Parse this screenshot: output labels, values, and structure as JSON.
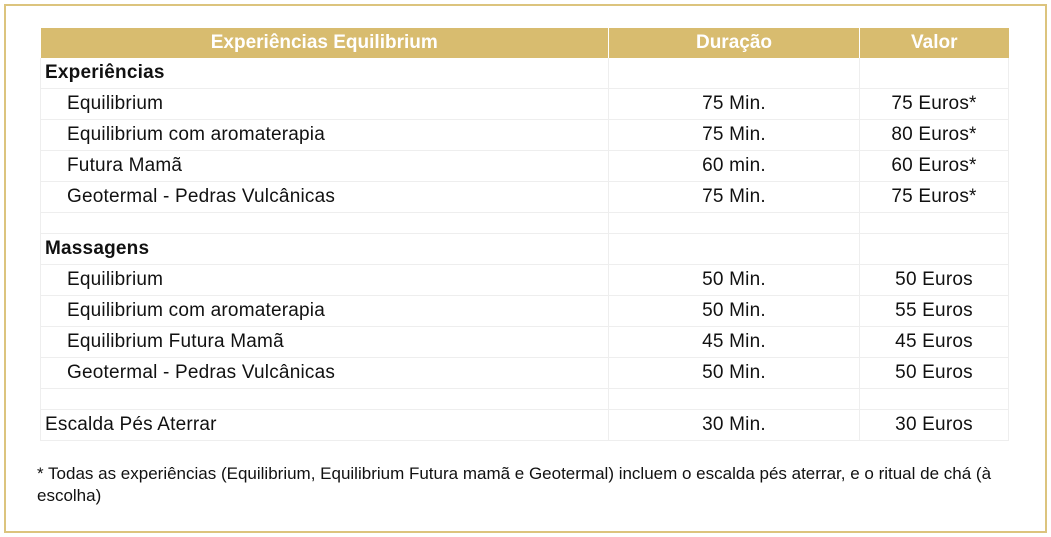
{
  "header": {
    "col1": "Experiências Equilibrium",
    "col2": "Duração",
    "col3": "Valor"
  },
  "sections": [
    {
      "title": "Experiências",
      "items": [
        {
          "name": "Equilibrium",
          "duration": "75 Min.",
          "price": "75 Euros*"
        },
        {
          "name": "Equilibrium com aromaterapia",
          "duration": "75 Min.",
          "price": "80 Euros*"
        },
        {
          "name": "Futura Mamã",
          "duration": "60 min.",
          "price": "60 Euros*"
        },
        {
          "name": "Geotermal - Pedras Vulcânicas",
          "duration": "75 Min.",
          "price": "75 Euros*"
        }
      ]
    },
    {
      "title": "Massagens",
      "items": [
        {
          "name": "Equilibrium",
          "duration": "50 Min.",
          "price": "50 Euros"
        },
        {
          "name": "Equilibrium com aromaterapia",
          "duration": "50 Min.",
          "price": "55 Euros"
        },
        {
          "name": "Equilibrium Futura Mamã",
          "duration": "45 Min.",
          "price": "45 Euros"
        },
        {
          "name": "Geotermal - Pedras Vulcânicas",
          "duration": "50 Min.",
          "price": "50 Euros"
        }
      ]
    }
  ],
  "extra": {
    "name": "Escalda Pés Aterrar",
    "duration": "30 Min.",
    "price": "30 Euros"
  },
  "footnote": "* Todas as experiências (Equilibrium, Equilibrium Futura mamã e Geotermal) incluem o escalda pés aterrar, e o ritual de chá (à escolha)",
  "colors": {
    "accent": "#d8bc6f",
    "border": "#dcc47e"
  }
}
